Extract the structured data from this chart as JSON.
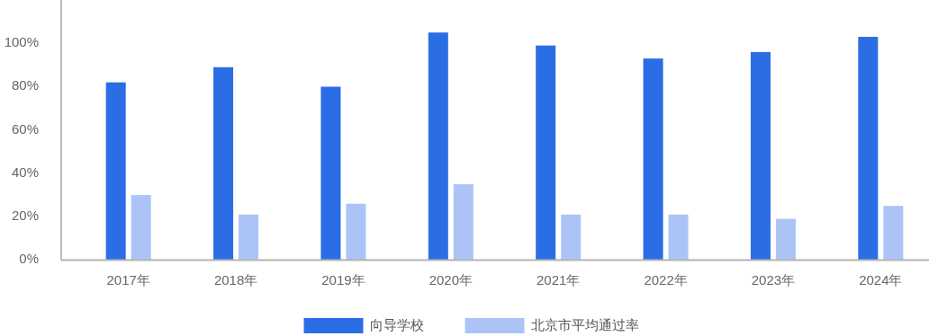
{
  "chart_data": {
    "type": "bar",
    "categories": [
      "2017年",
      "2018年",
      "2019年",
      "2020年",
      "2021年",
      "2022年",
      "2023年",
      "2024年"
    ],
    "series": [
      {
        "name": "向导学校",
        "color": "#2b6de5",
        "values": [
          82,
          89,
          80,
          105,
          99,
          93,
          96,
          103
        ]
      },
      {
        "name": "北京市平均通过率",
        "color": "#abc4f5",
        "values": [
          30,
          21,
          26,
          35,
          21,
          21,
          19,
          25
        ]
      }
    ],
    "ylim": [
      0,
      120
    ],
    "yticks": [
      {
        "value": 0,
        "label": "0%"
      },
      {
        "value": 20,
        "label": "20%"
      },
      {
        "value": 40,
        "label": "40%"
      },
      {
        "value": 60,
        "label": "60%"
      },
      {
        "value": 80,
        "label": "80%"
      },
      {
        "value": 100,
        "label": "100%"
      }
    ],
    "grid": false,
    "legend": "bottom"
  }
}
